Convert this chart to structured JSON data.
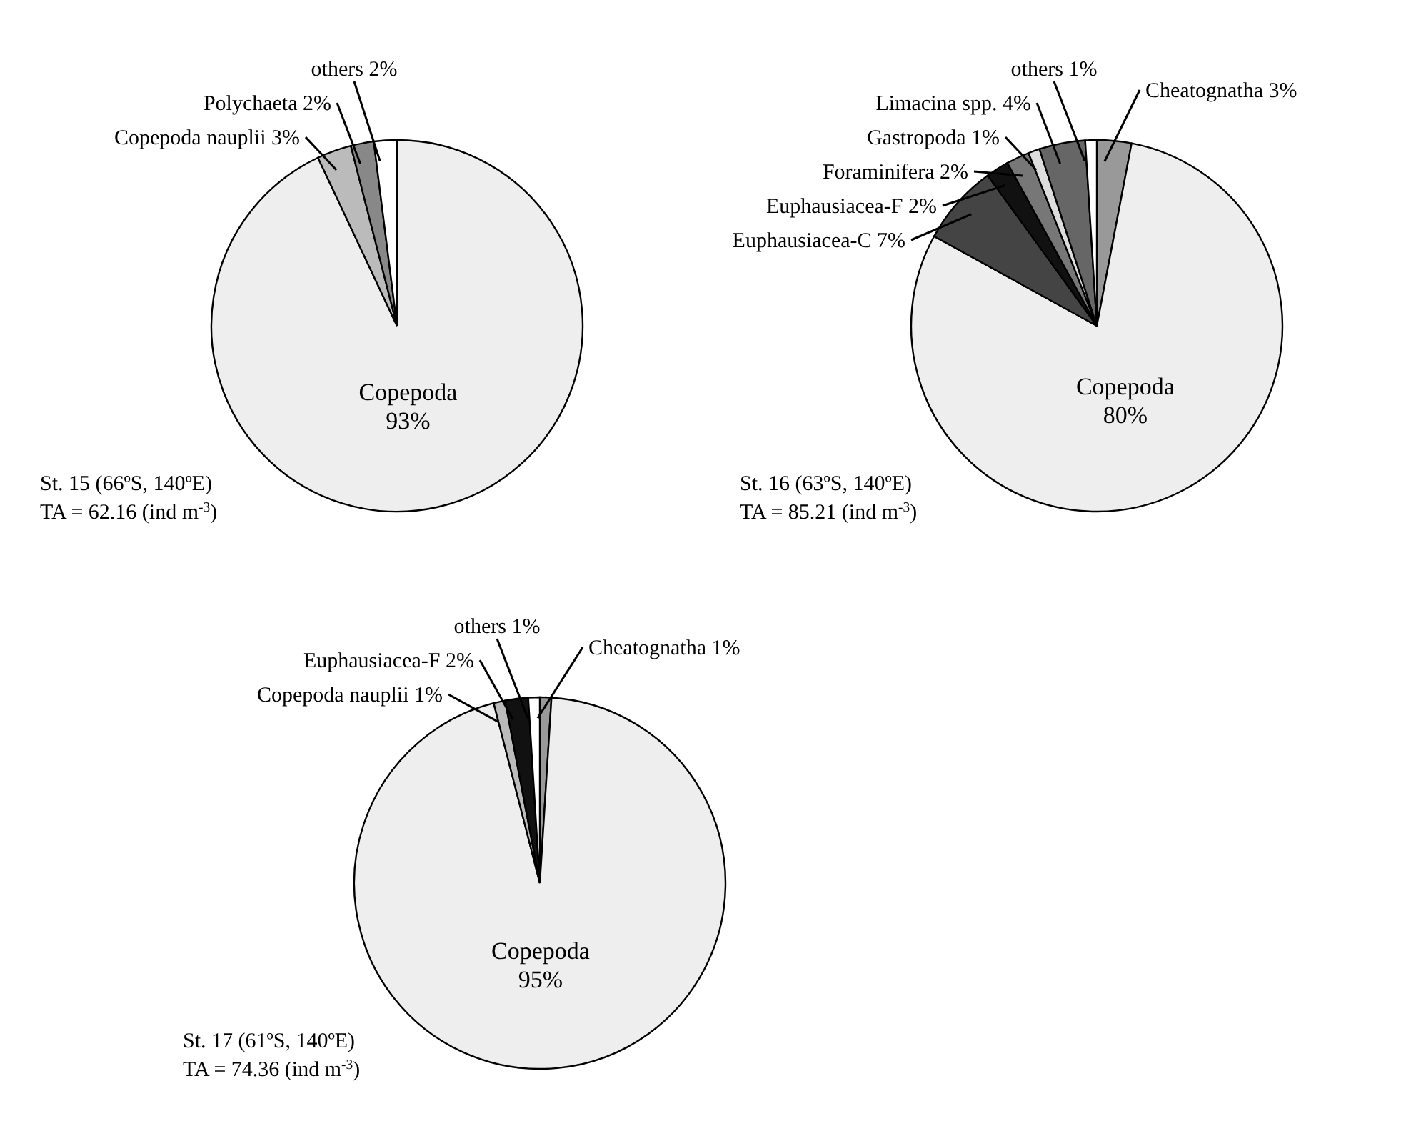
{
  "chart_data": [
    {
      "type": "pie",
      "categories": [
        "Copepoda",
        "Copepoda nauplii",
        "Polychaeta",
        "others"
      ],
      "values": [
        93,
        3,
        2,
        2
      ],
      "value_labels": [
        "93%",
        "3%",
        "2%",
        "2%"
      ],
      "colors": [
        "#eeeeee",
        "#bbbbbb",
        "#888888",
        "#ffffff"
      ],
      "legend": false,
      "annotations": [
        "St. 15 (66ºS, 140ºE)",
        "TA = 62.16 (ind m$^{-3}$)"
      ]
    },
    {
      "type": "pie",
      "categories": [
        "Cheatognatha",
        "Copepoda",
        "Euphausiacea-C",
        "Euphausiacea-F",
        "Foraminifera",
        "Gastropoda",
        "Limacina spp.",
        "others"
      ],
      "values": [
        3,
        80,
        7,
        2,
        2,
        1,
        4,
        1
      ],
      "value_labels": [
        "3%",
        "80%",
        "7%",
        "2%",
        "2%",
        "1%",
        "4%",
        "1%"
      ],
      "colors": [
        "#999999",
        "#eeeeee",
        "#444444",
        "#111111",
        "#777777",
        "#dddddd",
        "#666666",
        "#ffffff"
      ],
      "legend": false,
      "annotations": [
        "St. 16 (63ºS, 140ºE)",
        "TA = 85.21 (ind m$^{-3}$)"
      ]
    },
    {
      "type": "pie",
      "categories": [
        "Cheatognatha",
        "Copepoda",
        "Copepoda nauplii",
        "Euphausiacea-F",
        "others"
      ],
      "values": [
        1,
        95,
        1,
        2,
        1
      ],
      "value_labels": [
        "1%",
        "95%",
        "1%",
        "2%",
        "1%"
      ],
      "colors": [
        "#999999",
        "#eeeeee",
        "#bbbbbb",
        "#111111",
        "#ffffff"
      ],
      "legend": false,
      "annotations": [
        "St. 17 (61ºS, 140ºE)",
        "TA = 74.36 (ind m$^{-3}$)"
      ]
    }
  ]
}
